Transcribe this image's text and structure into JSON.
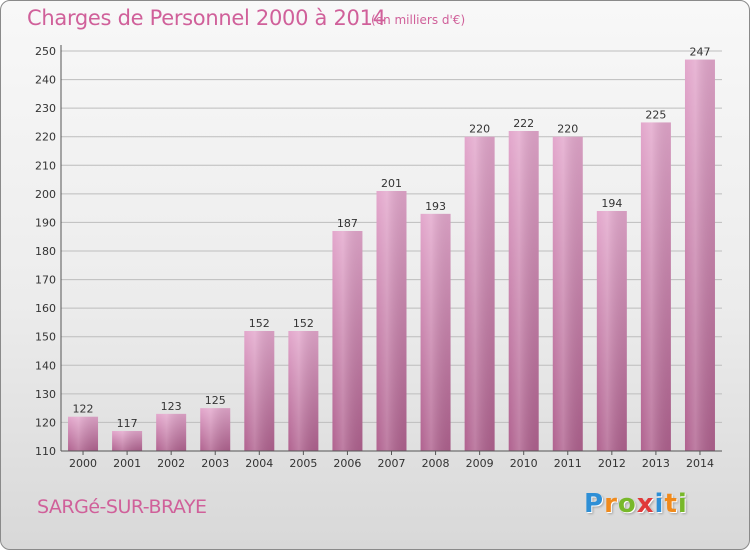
{
  "header": {
    "title": "Charges de Personnel 2000 à 2014",
    "subtitle": "(en milliers d'€)"
  },
  "footer": {
    "commune": "SARGé-SUR-BRAYE",
    "logo": [
      "P",
      "r",
      "o",
      "x",
      "i",
      "t",
      "i"
    ],
    "logo_colors": [
      "#2e8fd6",
      "#f08a1c",
      "#78b82a",
      "#e03a3a",
      "#2e8fd6",
      "#f08a1c",
      "#78b82a"
    ]
  },
  "colors": {
    "bar_top": "#e3a7cc",
    "bar_bottom": "#b0628f",
    "grid": "#bdbdbd",
    "text_accent": "#d0609a"
  },
  "chart_data": {
    "type": "bar",
    "title": "Charges de Personnel 2000 à 2014",
    "subtitle": "(en milliers d'€)",
    "categories": [
      "2000",
      "2001",
      "2002",
      "2003",
      "2004",
      "2005",
      "2006",
      "2007",
      "2008",
      "2009",
      "2010",
      "2011",
      "2012",
      "2013",
      "2014"
    ],
    "values": [
      122,
      117,
      123,
      125,
      152,
      152,
      187,
      201,
      193,
      220,
      222,
      220,
      194,
      225,
      247
    ],
    "ylim": [
      110,
      250
    ],
    "yticks": [
      "110",
      "120",
      "130",
      "140",
      "150",
      "160",
      "170",
      "180",
      "190",
      "200",
      "210",
      "220",
      "230",
      "240",
      "250"
    ],
    "grid": true,
    "legend": "none"
  }
}
